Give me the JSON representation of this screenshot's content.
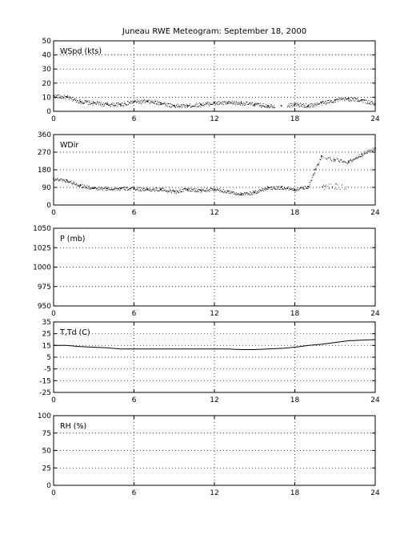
{
  "title": "Juneau RWE Meteogram: September 18, 2000",
  "chart_data": [
    {
      "type": "scatter",
      "label": "WSpd (kts)",
      "xlim": [
        0,
        24
      ],
      "ylim": [
        0,
        50
      ],
      "xticks": [
        0,
        6,
        12,
        18,
        24
      ],
      "yticks": [
        0,
        10,
        20,
        30,
        40,
        50
      ],
      "grid": true,
      "series": [
        {
          "style": "dots",
          "x": [
            0,
            1,
            2,
            3,
            4,
            5,
            6,
            7,
            8,
            9,
            10,
            11,
            12,
            13,
            14,
            15,
            16,
            17,
            18,
            19,
            20,
            21,
            22,
            23,
            24
          ],
          "y": [
            11,
            10,
            7,
            6,
            5,
            5,
            7,
            7,
            6,
            4,
            4,
            5,
            6,
            6,
            6,
            5,
            4,
            4,
            5,
            4,
            6,
            8,
            9,
            8,
            5
          ]
        }
      ]
    },
    {
      "type": "scatter",
      "label": "WDir",
      "xlim": [
        0,
        24
      ],
      "ylim": [
        0,
        360
      ],
      "xticks": [
        0,
        6,
        12,
        18,
        24
      ],
      "yticks": [
        0,
        90,
        180,
        270,
        360
      ],
      "grid": true,
      "series": [
        {
          "style": "dots",
          "x": [
            0,
            1,
            2,
            3,
            4,
            5,
            6,
            7,
            8,
            9,
            10,
            11,
            12,
            13,
            14,
            15,
            16,
            17,
            18,
            19,
            19.5,
            20,
            21,
            22,
            23,
            24
          ],
          "y": [
            135,
            125,
            100,
            85,
            85,
            85,
            85,
            80,
            80,
            70,
            80,
            75,
            80,
            70,
            55,
            65,
            90,
            90,
            80,
            95,
            180,
            250,
            230,
            220,
            260,
            290
          ]
        }
      ]
    },
    {
      "type": "line",
      "label": "P (mb)",
      "xlim": [
        0,
        24
      ],
      "ylim": [
        950,
        1050
      ],
      "xticks": [
        0,
        6,
        12,
        18,
        24
      ],
      "yticks": [
        950,
        975,
        1000,
        1025,
        1050
      ],
      "grid": true,
      "series": []
    },
    {
      "type": "line",
      "label": "T,Td (C)",
      "xlim": [
        0,
        24
      ],
      "ylim": [
        -25,
        35
      ],
      "xticks": [
        0,
        6,
        12,
        18,
        24
      ],
      "yticks": [
        -25,
        -15,
        -5,
        5,
        15,
        25,
        35
      ],
      "grid": true,
      "series": [
        {
          "style": "line",
          "x": [
            0,
            1,
            2,
            3,
            4,
            5,
            6,
            7,
            8,
            9,
            10,
            11,
            12,
            13,
            14,
            15,
            16,
            17,
            18,
            19,
            20,
            21,
            22,
            23,
            24
          ],
          "y": [
            15,
            15,
            14,
            13.5,
            13,
            12,
            12,
            12,
            12,
            12,
            12,
            12,
            12,
            12,
            11.5,
            11.5,
            12,
            12.5,
            13.5,
            15,
            16,
            17.5,
            19,
            19.5,
            20
          ]
        }
      ]
    },
    {
      "type": "line",
      "label": "RH (%)",
      "xlim": [
        0,
        24
      ],
      "ylim": [
        0,
        100
      ],
      "xticks": [
        0,
        6,
        12,
        18,
        24
      ],
      "yticks": [
        0,
        25,
        50,
        75,
        100
      ],
      "grid": true,
      "series": []
    }
  ]
}
